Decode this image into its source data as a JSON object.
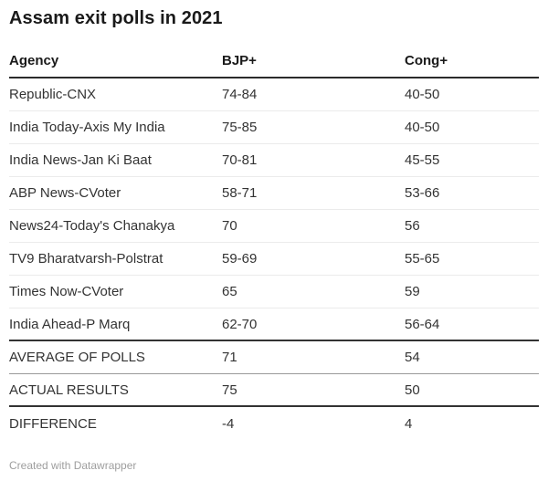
{
  "chart_data": {
    "type": "table",
    "title": "Assam exit polls in 2021",
    "columns": [
      "Agency",
      "BJP+",
      "Cong+"
    ],
    "rows": [
      {
        "agency": "Republic-CNX",
        "bjp": "74-84",
        "cong": "40-50"
      },
      {
        "agency": "India Today-Axis My India",
        "bjp": "75-85",
        "cong": "40-50"
      },
      {
        "agency": "India News-Jan Ki Baat",
        "bjp": "70-81",
        "cong": "45-55"
      },
      {
        "agency": "ABP News-CVoter",
        "bjp": "58-71",
        "cong": "53-66"
      },
      {
        "agency": "News24-Today's Chanakya",
        "bjp": "70",
        "cong": "56"
      },
      {
        "agency": "TV9 Bharatvarsh-Polstrat",
        "bjp": "59-69",
        "cong": "55-65"
      },
      {
        "agency": "Times Now-CVoter",
        "bjp": "65",
        "cong": "59"
      },
      {
        "agency": "India Ahead-P Marq",
        "bjp": "62-70",
        "cong": "56-64"
      }
    ],
    "summary_rows": [
      {
        "agency": "AVERAGE OF POLLS",
        "bjp": "71",
        "cong": "54"
      },
      {
        "agency": "ACTUAL RESULTS",
        "bjp": "75",
        "cong": "50"
      },
      {
        "agency": "DIFFERENCE",
        "bjp": "-4",
        "cong": "4"
      }
    ],
    "layout_hints": {
      "grid": "horizontal rules only",
      "legend": "none"
    }
  },
  "footer": {
    "credit": "Created with Datawrapper"
  },
  "colors": {
    "background": "#ffffff",
    "title_text": "#1a1a1a",
    "body_text": "#333333",
    "rule_dark": "#333333",
    "rule_light": "#ebebeb",
    "rule_medium": "#999999",
    "credit_text": "#9e9e9e"
  }
}
